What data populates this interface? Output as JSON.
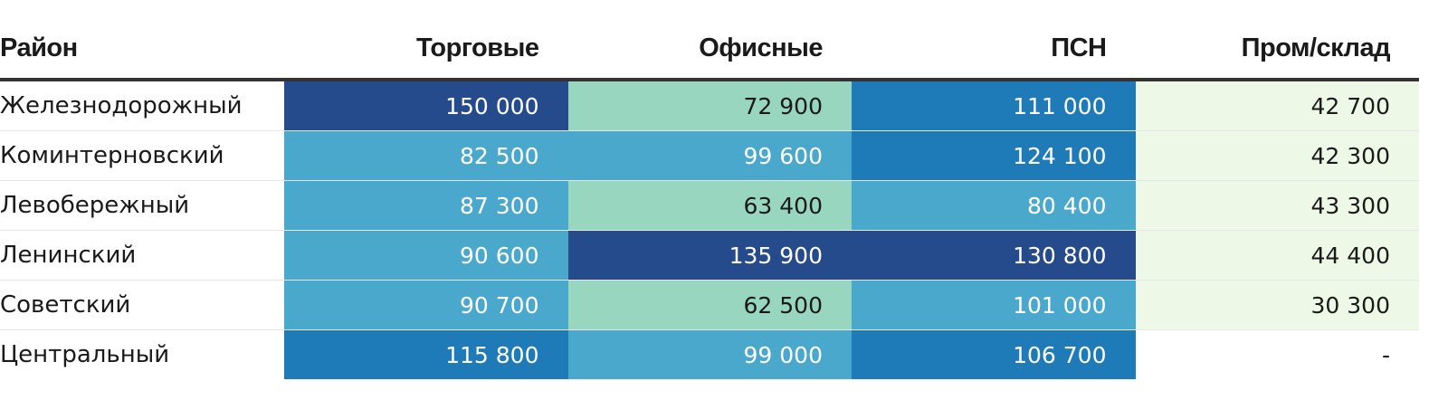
{
  "chart_data": {
    "type": "table",
    "columns": [
      "Район",
      "Торговые",
      "Офисные",
      "ПСН",
      "Пром/склад"
    ],
    "rows": [
      {
        "district": "Железнодорожный",
        "values": [
          "150 000",
          "72 900",
          "111 000",
          "42 700"
        ]
      },
      {
        "district": "Коминтерновский",
        "values": [
          "82 500",
          "99 600",
          "124 100",
          "42 300"
        ]
      },
      {
        "district": "Левобережный",
        "values": [
          "87 300",
          "63 400",
          "80 400",
          "43 300"
        ]
      },
      {
        "district": "Ленинский",
        "values": [
          "90 600",
          "135 900",
          "130 800",
          "44 400"
        ]
      },
      {
        "district": "Советский",
        "values": [
          "90 700",
          "62 500",
          "101 000",
          "30 300"
        ]
      },
      {
        "district": "Центральный",
        "values": [
          "115 800",
          "99 000",
          "106 700",
          "-"
        ]
      }
    ],
    "cell_colors": [
      [
        "#264b8c",
        "#98d6c0",
        "#1f7bb8",
        "#eef8e6"
      ],
      [
        "#4aa8cc",
        "#4aa8cc",
        "#1f7bb8",
        "#eef8e6"
      ],
      [
        "#4aa8cc",
        "#98d6c0",
        "#4aa8cc",
        "#eef8e6"
      ],
      [
        "#4aa8cc",
        "#264b8c",
        "#264b8c",
        "#eef8e6"
      ],
      [
        "#4aa8cc",
        "#98d6c0",
        "#4aa8cc",
        "#eef8e6"
      ],
      [
        "#1f7bb8",
        "#4aa8cc",
        "#1f7bb8",
        "#ffffff"
      ]
    ],
    "text_colors": [
      [
        "#ffffff",
        "#1a1a1a",
        "#ffffff",
        "#1a1a1a"
      ],
      [
        "#ffffff",
        "#ffffff",
        "#ffffff",
        "#1a1a1a"
      ],
      [
        "#ffffff",
        "#1a1a1a",
        "#ffffff",
        "#1a1a1a"
      ],
      [
        "#ffffff",
        "#ffffff",
        "#ffffff",
        "#1a1a1a"
      ],
      [
        "#ffffff",
        "#1a1a1a",
        "#ffffff",
        "#1a1a1a"
      ],
      [
        "#ffffff",
        "#ffffff",
        "#ffffff",
        "#1a1a1a"
      ]
    ]
  }
}
